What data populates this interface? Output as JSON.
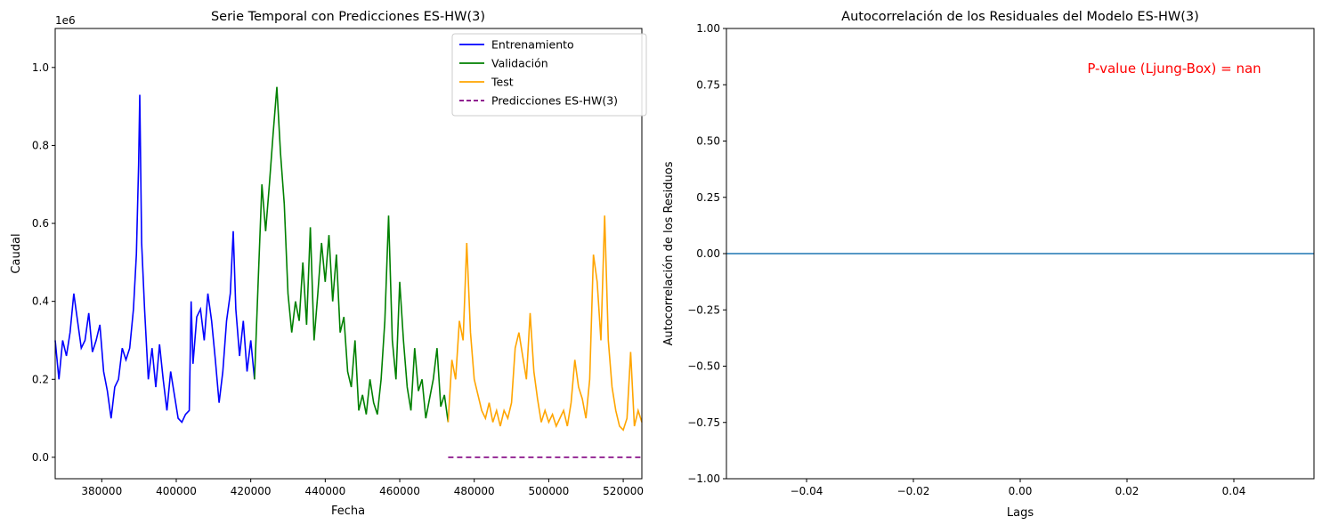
{
  "chart_data": [
    {
      "type": "line",
      "title": "Serie Temporal con Predicciones ES-HW(3)",
      "xlabel": "Fecha",
      "ylabel": "Caudal",
      "y_offset_label": "1e6",
      "xlim": [
        367500,
        525000
      ],
      "ylim": [
        -0.055,
        1.1
      ],
      "x_ticks": [
        380000,
        400000,
        420000,
        440000,
        460000,
        480000,
        500000,
        520000
      ],
      "y_ticks": [
        0.0,
        0.2,
        0.4,
        0.6,
        0.8,
        1.0
      ],
      "legend_position": "top-right",
      "grid": false,
      "series": [
        {
          "name": "Entrenamiento",
          "color": "#0000ff",
          "style": "solid",
          "x": [
            367500,
            368500,
            369500,
            370500,
            371500,
            372500,
            373500,
            374500,
            375500,
            376500,
            377500,
            378500,
            379500,
            380500,
            381500,
            382500,
            383500,
            384500,
            385500,
            386500,
            387500,
            388500,
            389300,
            389900,
            390200,
            390700,
            391500,
            392500,
            393500,
            394500,
            395500,
            396500,
            397500,
            398500,
            399500,
            400500,
            401500,
            402500,
            403500,
            404000,
            404500,
            405500,
            406500,
            407500,
            408500,
            409500,
            410500,
            411500,
            412500,
            413500,
            414500,
            415300,
            416000,
            417000,
            418000,
            419000,
            420000,
            421000
          ],
          "y": [
            0.3,
            0.2,
            0.3,
            0.26,
            0.32,
            0.42,
            0.35,
            0.28,
            0.3,
            0.37,
            0.27,
            0.3,
            0.34,
            0.22,
            0.17,
            0.1,
            0.18,
            0.2,
            0.28,
            0.25,
            0.28,
            0.38,
            0.52,
            0.75,
            0.93,
            0.55,
            0.38,
            0.2,
            0.28,
            0.18,
            0.29,
            0.2,
            0.12,
            0.22,
            0.16,
            0.1,
            0.09,
            0.11,
            0.12,
            0.4,
            0.24,
            0.36,
            0.38,
            0.3,
            0.42,
            0.35,
            0.25,
            0.14,
            0.22,
            0.35,
            0.42,
            0.58,
            0.38,
            0.26,
            0.35,
            0.22,
            0.3,
            0.2
          ]
        },
        {
          "name": "Validación",
          "color": "#008000",
          "style": "solid",
          "x": [
            421000,
            422000,
            423000,
            424000,
            425000,
            426000,
            427000,
            428000,
            429000,
            430000,
            431000,
            432000,
            433000,
            434000,
            435000,
            436000,
            437000,
            438000,
            439000,
            440000,
            441000,
            442000,
            443000,
            444000,
            445000,
            446000,
            447000,
            448000,
            449000,
            450000,
            451000,
            452000,
            453000,
            454000,
            455000,
            456000,
            457000,
            458000,
            459000,
            460000,
            461000,
            462000,
            463000,
            464000,
            465000,
            466000,
            467000,
            468000,
            469000,
            470000,
            471000,
            472000,
            473000
          ],
          "y": [
            0.2,
            0.45,
            0.7,
            0.58,
            0.7,
            0.83,
            0.95,
            0.78,
            0.65,
            0.42,
            0.32,
            0.4,
            0.35,
            0.5,
            0.34,
            0.59,
            0.3,
            0.42,
            0.55,
            0.45,
            0.57,
            0.4,
            0.52,
            0.32,
            0.36,
            0.22,
            0.18,
            0.3,
            0.12,
            0.16,
            0.11,
            0.2,
            0.14,
            0.11,
            0.2,
            0.35,
            0.62,
            0.3,
            0.2,
            0.45,
            0.3,
            0.18,
            0.12,
            0.28,
            0.17,
            0.2,
            0.1,
            0.15,
            0.2,
            0.28,
            0.13,
            0.16,
            0.09
          ]
        },
        {
          "name": "Test",
          "color": "#ffa500",
          "style": "solid",
          "x": [
            473000,
            474000,
            475000,
            476000,
            477000,
            478000,
            479000,
            480000,
            481000,
            482000,
            483000,
            484000,
            485000,
            486000,
            487000,
            488000,
            489000,
            490000,
            491000,
            492000,
            493000,
            494000,
            495000,
            496000,
            497000,
            498000,
            499000,
            500000,
            501000,
            502000,
            503000,
            504000,
            505000,
            506000,
            507000,
            508000,
            509000,
            510000,
            511000,
            512000,
            513000,
            514000,
            515000,
            516000,
            517000,
            518000,
            519000,
            520000,
            521000,
            522000,
            523000,
            524000,
            525000
          ],
          "y": [
            0.09,
            0.25,
            0.2,
            0.35,
            0.3,
            0.55,
            0.32,
            0.2,
            0.16,
            0.12,
            0.1,
            0.14,
            0.09,
            0.12,
            0.08,
            0.12,
            0.1,
            0.14,
            0.28,
            0.32,
            0.26,
            0.2,
            0.37,
            0.22,
            0.15,
            0.09,
            0.12,
            0.09,
            0.11,
            0.08,
            0.1,
            0.12,
            0.08,
            0.14,
            0.25,
            0.18,
            0.15,
            0.1,
            0.2,
            0.52,
            0.45,
            0.3,
            0.62,
            0.3,
            0.18,
            0.12,
            0.08,
            0.07,
            0.1,
            0.27,
            0.08,
            0.12,
            0.09
          ]
        },
        {
          "name": "Predicciones ES-HW(3)",
          "color": "#800080",
          "style": "dashed",
          "x": [
            473000,
            525000
          ],
          "y": [
            0.0,
            0.0
          ]
        }
      ]
    },
    {
      "type": "line",
      "title": "Autocorrelación de los Residuales del Modelo ES-HW(3)",
      "xlabel": "Lags",
      "ylabel": "Autocorrelación de los Residuos",
      "xlim": [
        -0.055,
        0.055
      ],
      "ylim": [
        -1.0,
        1.0
      ],
      "x_ticks": [
        -0.04,
        -0.02,
        0.0,
        0.02,
        0.04
      ],
      "y_ticks": [
        -1.0,
        -0.75,
        -0.5,
        -0.25,
        0.0,
        0.25,
        0.5,
        0.75,
        1.0
      ],
      "grid": false,
      "annotation": "P-value (Ljung-Box) = nan",
      "annotation_color": "#ff0000",
      "zero_line_color": "#1f77b4",
      "values": []
    }
  ]
}
